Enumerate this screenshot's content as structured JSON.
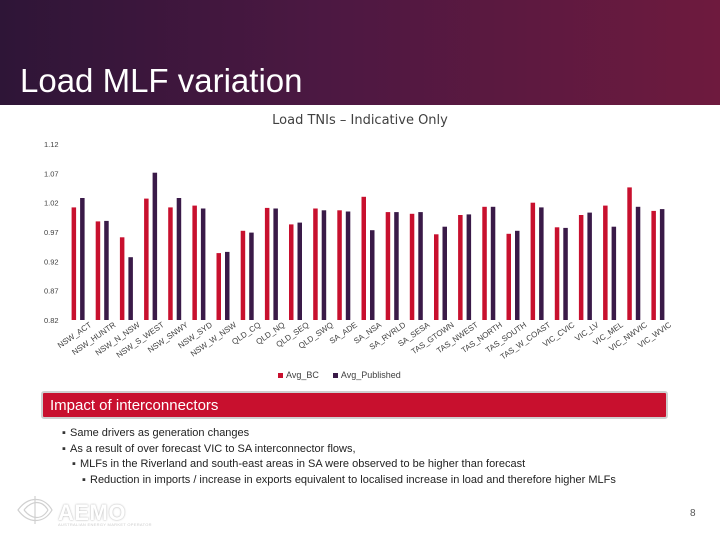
{
  "header": {
    "title": "Load MLF variation"
  },
  "chart_data": {
    "type": "bar",
    "title": "Load TNIs – Indicative Only",
    "xlabel": "",
    "ylabel": "",
    "ylim": [
      0.82,
      1.12
    ],
    "yticks": [
      "1.12",
      "1.07",
      "1.02",
      "0.97",
      "0.92",
      "0.87",
      "0.82"
    ],
    "ytick_values": [
      1.12,
      1.07,
      1.02,
      0.97,
      0.92,
      0.87,
      0.82
    ],
    "grid": false,
    "legend_position": "bottom",
    "categories": [
      "NSW_ACT",
      "NSW_HUNTR",
      "NSW_N_NSW",
      "NSW_S_WEST",
      "NSW_SNWY",
      "NSW_SYD",
      "NSW_W_NSW",
      "QLD_CQ",
      "QLD_NQ",
      "QLD_SEQ",
      "QLD_SWQ",
      "SA_ADE",
      "SA_NSA",
      "SA_RVRLD",
      "SA_SESA",
      "TAS_GTOWN",
      "TAS_NWEST",
      "TAS_NORTH",
      "TAS_SOUTH",
      "TAS_W_COAST",
      "VIC_CVIC",
      "VIC_LV",
      "VIC_MEL",
      "VIC_NWVIC",
      "VIC_WVIC"
    ],
    "series": [
      {
        "name": "Avg_BC",
        "color": "#c8102e",
        "values": [
          1.012,
          0.988,
          0.961,
          1.027,
          1.012,
          1.015,
          0.934,
          0.972,
          1.011,
          0.983,
          1.01,
          1.007,
          1.03,
          1.004,
          1.001,
          0.966,
          0.999,
          1.013,
          0.967,
          1.02,
          0.978,
          0.999,
          1.015,
          1.046,
          1.006
        ]
      },
      {
        "name": "Avg_Published",
        "color": "#3a1a48",
        "values": [
          1.028,
          0.989,
          0.927,
          1.071,
          1.028,
          1.01,
          0.936,
          0.969,
          1.01,
          0.986,
          1.007,
          1.005,
          0.973,
          1.004,
          1.004,
          0.979,
          1.0,
          1.013,
          0.972,
          1.012,
          0.977,
          1.003,
          0.979,
          1.013,
          1.009
        ]
      }
    ]
  },
  "callout": {
    "title": "Impact of interconnectors"
  },
  "bullets": [
    {
      "marker": "▪",
      "text": "Same drivers as generation changes"
    },
    {
      "marker": "▪",
      "text": "As a result of over forecast VIC to SA interconnector flows,"
    },
    {
      "marker": "▪",
      "text": "MLFs in the Riverland and south-east areas in SA were observed to be higher than forecast"
    },
    {
      "marker": "▪",
      "text": "Reduction in imports / increase in exports equivalent to localised increase in load and therefore higher MLFs"
    }
  ],
  "logo": {
    "text": "AEMO",
    "tagline": "AUSTRALIAN ENERGY MARKET OPERATOR",
    "icon": "aemo-logo-icon"
  },
  "footer": {
    "page_number": "8"
  }
}
